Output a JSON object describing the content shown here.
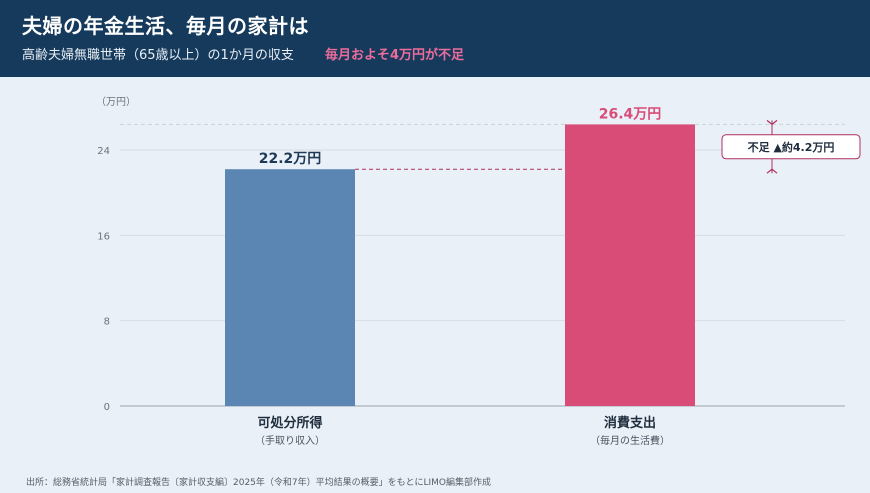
{
  "header": {
    "title": "夫婦の年金生活、毎月の家計は",
    "subtitle": "高齢夫婦無職世帯（65歳以上）の1か月の収支",
    "highlight": "毎月およそ4万円が不足"
  },
  "chart_data": {
    "type": "bar",
    "unit_label": "（万円）",
    "categories": [
      "可処分所得",
      "消費支出"
    ],
    "sublabels": [
      "（手取り収入）",
      "（毎月の生活費）"
    ],
    "values": [
      22.2,
      26.4
    ],
    "value_labels": [
      "22.2万円",
      "26.4万円"
    ],
    "ylim": [
      0,
      27
    ],
    "yticks": [
      0,
      8,
      16,
      24
    ],
    "grid": true,
    "annotation": "不足 ▲約4.2万円"
  },
  "colors": {
    "bar_income": "#5b86b4",
    "bar_spending": "#d94c78",
    "header_bg": "#163a5c",
    "accent": "#ec6d9b",
    "annotation": "#b03060"
  },
  "source": "出所：総務省統計局「家計調査報告〔家計収支編〕2025年（令和7年）平均結果の概要」をもとにLIMO編集部作成"
}
